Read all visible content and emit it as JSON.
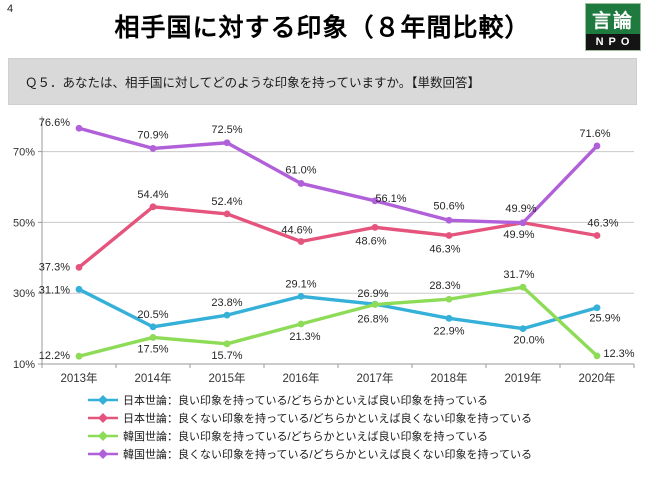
{
  "page_number": "4",
  "title": "相手国に対する印象（８年間比較）",
  "logo": {
    "top": "言論",
    "bottom": "NPO"
  },
  "question": "Ｑ５．あなたは、相手国に対してどのような印象を持っていますか。【単数回答】",
  "chart_data": {
    "type": "line",
    "title": "相手国に対する印象（８年間比較）",
    "categories": [
      "2013年",
      "2014年",
      "2015年",
      "2016年",
      "2017年",
      "2018年",
      "2019年",
      "2020年"
    ],
    "series": [
      {
        "name": "日本世論：良い印象を持っている/どちらかといえば良い印象を持っている",
        "color": "#35b0d8",
        "values": [
          31.1,
          20.5,
          23.8,
          29.1,
          26.9,
          22.9,
          20.0,
          25.9
        ]
      },
      {
        "name": "日本世論：良くない印象を持っている/どちらかといえば良くない印象を持っている",
        "color": "#e5547c",
        "values": [
          37.3,
          54.4,
          52.4,
          44.6,
          48.6,
          46.3,
          49.9,
          46.3
        ]
      },
      {
        "name": "韓国世論：良い印象を持っている/どちらかといえば良い印象を持っている",
        "color": "#8edb58",
        "values": [
          12.2,
          17.5,
          15.7,
          21.3,
          26.8,
          28.3,
          31.7,
          12.3
        ]
      },
      {
        "name": "韓国世論：良くない印象を持っている/どちらかといえば良くない印象を持っている",
        "color": "#b060d8",
        "values": [
          76.6,
          70.9,
          72.5,
          61.0,
          56.1,
          50.6,
          49.9,
          71.6
        ]
      }
    ],
    "xlabel": "",
    "ylabel": "",
    "ylim": [
      10,
      80
    ],
    "ytick_values": [
      10,
      30,
      50,
      70
    ],
    "ytick_labels": [
      "10%",
      "30%",
      "50%",
      "70%"
    ],
    "grid": true,
    "data_labels": true,
    "legend_position": "bottom"
  }
}
